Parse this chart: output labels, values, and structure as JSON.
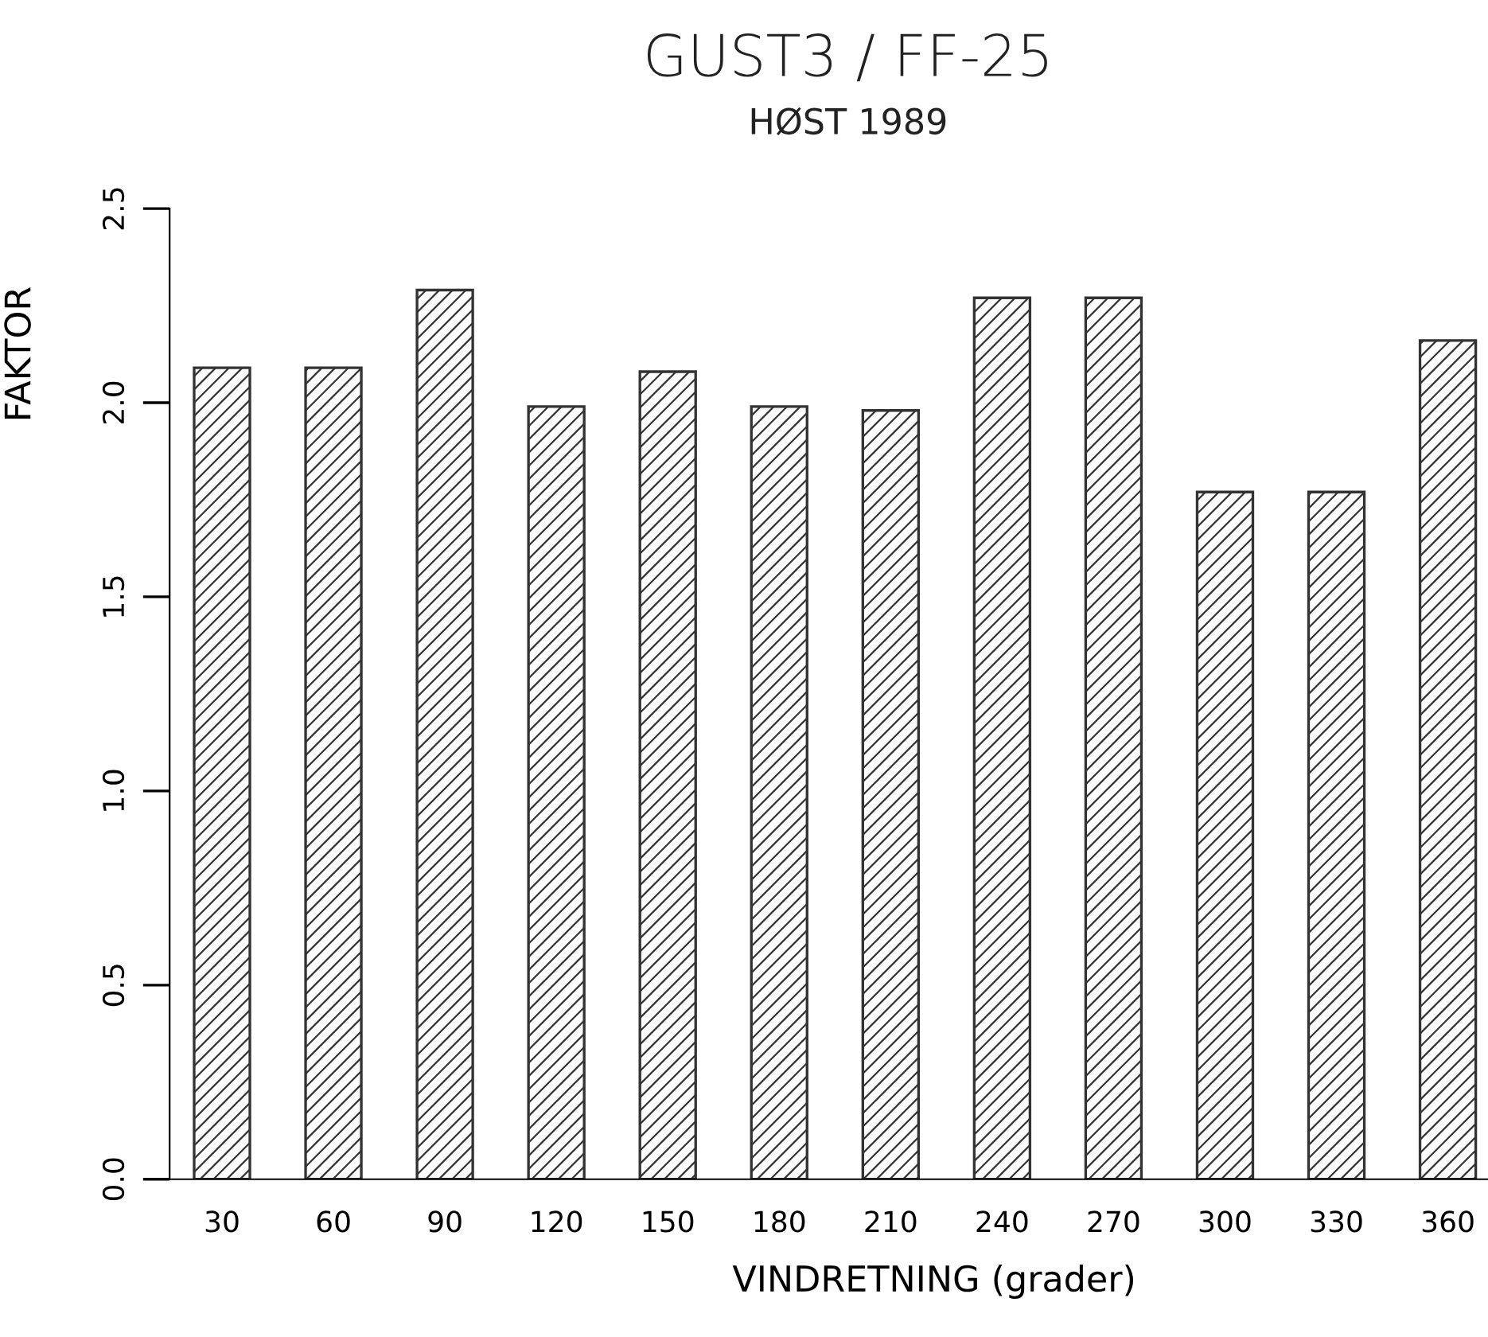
{
  "chart_data": {
    "type": "bar",
    "title": "GUST3 / FF-25",
    "subtitle": "HØST 1989",
    "xlabel": "VINDRETNING (grader)",
    "ylabel": "FAKTOR",
    "categories": [
      "30",
      "60",
      "90",
      "120",
      "150",
      "180",
      "210",
      "240",
      "270",
      "300",
      "330",
      "360"
    ],
    "values": [
      2.09,
      2.09,
      2.29,
      1.99,
      2.08,
      1.99,
      1.98,
      2.27,
      2.27,
      1.77,
      1.77,
      2.16
    ],
    "color": "#333333",
    "ylim": [
      0,
      2.5
    ],
    "yticks": [
      {
        "value": 0,
        "label": "0.0"
      },
      {
        "value": 0.5,
        "label": "0.5"
      },
      {
        "value": 1,
        "label": "1.0"
      },
      {
        "value": 1.5,
        "label": "1.5"
      },
      {
        "value": 2,
        "label": "2.0"
      },
      {
        "value": 2.5,
        "label": "2.5"
      }
    ],
    "grid": false
  }
}
